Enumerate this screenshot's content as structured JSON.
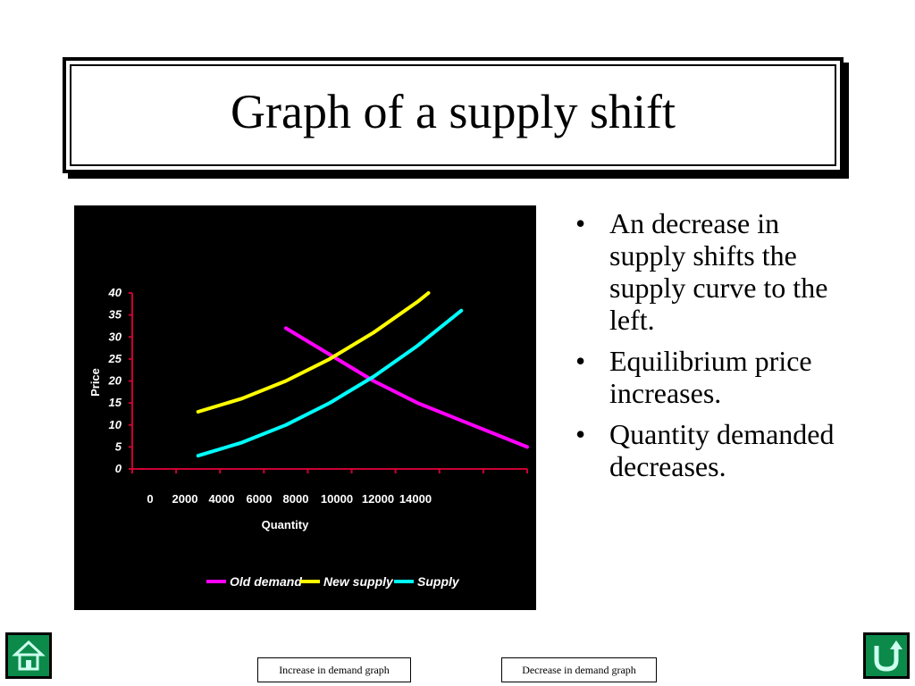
{
  "slide": {
    "title": "Graph of a supply shift"
  },
  "bullets": [
    "An decrease in supply shifts the supply curve to the left.",
    "Equilibrium price increases.",
    "Quantity demanded decreases."
  ],
  "links": {
    "increase": "Increase  in demand graph",
    "decrease": "Decrease  in demand graph"
  },
  "nav": {
    "home_icon": "home-icon",
    "return_icon": "return-icon",
    "accent": "#0b8a4a"
  },
  "chart_data": {
    "type": "line",
    "title": "",
    "xlabel": "Quantity",
    "ylabel": "Price",
    "x_ticks": [
      "0",
      "2000",
      "4000",
      "6000",
      "8000",
      "10000",
      "12000",
      "14000"
    ],
    "y_ticks": [
      "0",
      "5",
      "10",
      "15",
      "20",
      "25",
      "30",
      "35",
      "40"
    ],
    "xlim": [
      0,
      18000
    ],
    "ylim": [
      0,
      40
    ],
    "grid": false,
    "legend": "bottom",
    "background": "#000000",
    "axis_color": "#cc0033",
    "series": [
      {
        "name": "Old demand",
        "color": "#ff00ff",
        "points": [
          [
            7000,
            32
          ],
          [
            9000,
            26
          ],
          [
            11000,
            20
          ],
          [
            13000,
            15
          ],
          [
            15000,
            11
          ],
          [
            17000,
            7
          ],
          [
            18000,
            5
          ]
        ]
      },
      {
        "name": "New supply",
        "color": "#ffff00",
        "points": [
          [
            3000,
            13
          ],
          [
            5000,
            16
          ],
          [
            7000,
            20
          ],
          [
            9000,
            25
          ],
          [
            11000,
            31
          ],
          [
            13000,
            38
          ],
          [
            13500,
            40
          ]
        ]
      },
      {
        "name": "Supply",
        "color": "#00ffff",
        "points": [
          [
            3000,
            3
          ],
          [
            5000,
            6
          ],
          [
            7000,
            10
          ],
          [
            9000,
            15
          ],
          [
            11000,
            21
          ],
          [
            13000,
            28
          ],
          [
            15000,
            36
          ]
        ]
      }
    ]
  }
}
